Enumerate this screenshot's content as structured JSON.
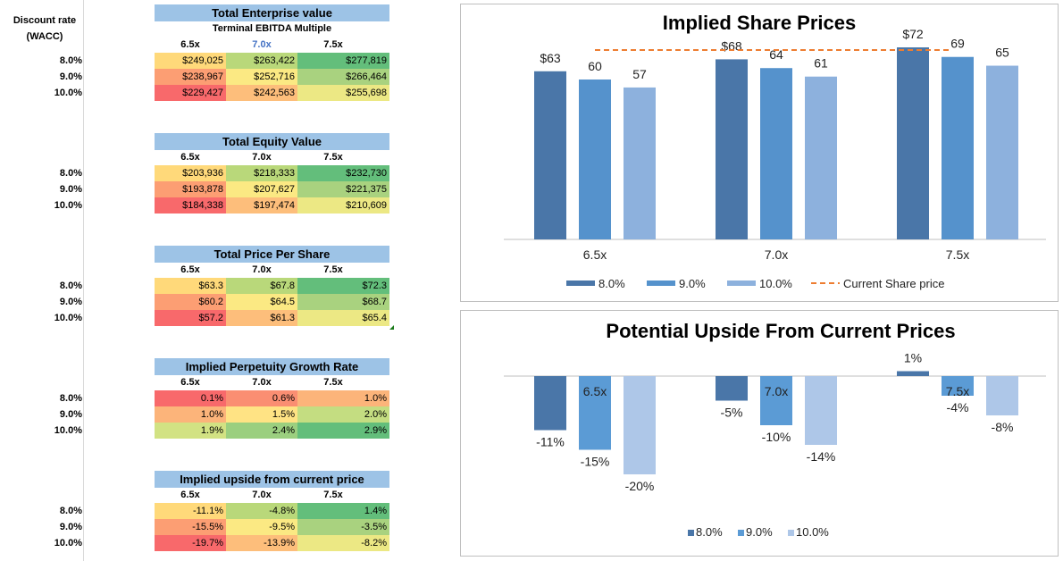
{
  "discount_label": [
    "Discount rate",
    "(WACC)"
  ],
  "row_labels": [
    "8.0%",
    "9.0%",
    "10.0%"
  ],
  "col_headers": [
    "6.5x",
    "7.0x",
    "7.5x"
  ],
  "terminal_label": "Terminal EBITDA Multiple",
  "tables": [
    {
      "title": "Total Enterprise value",
      "rows": [
        [
          "$249,025",
          "$263,422",
          "$277,819"
        ],
        [
          "$238,967",
          "$252,716",
          "$266,464"
        ],
        [
          "$229,427",
          "$242,563",
          "$255,698"
        ]
      ]
    },
    {
      "title": "Total Equity Value",
      "rows": [
        [
          "$203,936",
          "$218,333",
          "$232,730"
        ],
        [
          "$193,878",
          "$207,627",
          "$221,375"
        ],
        [
          "$184,338",
          "$197,474",
          "$210,609"
        ]
      ]
    },
    {
      "title": "Total Price Per Share",
      "rows": [
        [
          "$63.3",
          "$67.8",
          "$72.3"
        ],
        [
          "$60.2",
          "$64.5",
          "$68.7"
        ],
        [
          "$57.2",
          "$61.3",
          "$65.4"
        ]
      ]
    },
    {
      "title": "Implied Perpetuity Growth Rate",
      "rows": [
        [
          "0.1%",
          "0.6%",
          "1.0%"
        ],
        [
          "1.0%",
          "1.5%",
          "2.0%"
        ],
        [
          "1.9%",
          "2.4%",
          "2.9%"
        ]
      ]
    },
    {
      "title": "Implied upside from current price",
      "rows": [
        [
          "-11.1%",
          "-4.8%",
          "1.4%"
        ],
        [
          "-15.5%",
          "-9.5%",
          "-3.5%"
        ],
        [
          "-19.7%",
          "-13.9%",
          "-8.2%"
        ]
      ]
    }
  ],
  "table_colors": [
    [
      [
        "#ffd97a",
        "#b9d87a",
        "#63be7b"
      ],
      [
        "#fc9e73",
        "#fbe983",
        "#a9d27f"
      ],
      [
        "#f8696b",
        "#fdbe7b",
        "#ece884"
      ]
    ],
    [
      [
        "#ffd97a",
        "#b9d87a",
        "#63be7b"
      ],
      [
        "#fc9e73",
        "#fbe983",
        "#a9d27f"
      ],
      [
        "#f8696b",
        "#fdbe7b",
        "#ece884"
      ]
    ],
    [
      [
        "#ffd97a",
        "#b9d87a",
        "#63be7b"
      ],
      [
        "#fc9e73",
        "#fbe983",
        "#a9d27f"
      ],
      [
        "#f8696b",
        "#fdbe7b",
        "#ece884"
      ]
    ],
    [
      [
        "#f8696b",
        "#fa8e72",
        "#fcb47a"
      ],
      [
        "#fcb47a",
        "#ffe384",
        "#c4dd81"
      ],
      [
        "#d2e283",
        "#9bcf7f",
        "#63be7b"
      ]
    ],
    [
      [
        "#ffd97a",
        "#b9d87a",
        "#63be7b"
      ],
      [
        "#fc9e73",
        "#fbe983",
        "#a9d27f"
      ],
      [
        "#f8696b",
        "#fdbe7b",
        "#ece884"
      ]
    ]
  ],
  "chart_data": [
    {
      "type": "bar",
      "title": "Implied Share Prices",
      "categories": [
        "6.5x",
        "7.0x",
        "7.5x"
      ],
      "series": [
        {
          "name": "8.0%",
          "values": [
            63.3,
            67.8,
            72.3
          ],
          "labels": [
            "$63",
            "$68",
            "$72"
          ],
          "color": "#4a76a8"
        },
        {
          "name": "9.0%",
          "values": [
            60.2,
            64.5,
            68.7
          ],
          "labels": [
            "60",
            "64",
            "69"
          ],
          "color": "#5592cc"
        },
        {
          "name": "10.0%",
          "values": [
            57.2,
            61.3,
            65.4
          ],
          "labels": [
            "57",
            "61",
            "65"
          ],
          "color": "#8db1dd"
        }
      ],
      "reference_line": {
        "name": "Current Share price",
        "value": 71.3,
        "color": "#ed7d31"
      },
      "ylim": [
        0,
        75
      ],
      "legend": "bottom"
    },
    {
      "type": "bar",
      "title": "Potential Upside From Current Prices",
      "categories": [
        "6.5x",
        "7.0x",
        "7.5x"
      ],
      "series": [
        {
          "name": "8.0%",
          "values": [
            -11,
            -5,
            1
          ],
          "labels": [
            "-11%",
            "-5%",
            "1%"
          ],
          "color": "#4a76a8"
        },
        {
          "name": "9.0%",
          "values": [
            -15,
            -10,
            -4
          ],
          "labels": [
            "-15%",
            "-10%",
            "-4%"
          ],
          "color": "#5b9bd5"
        },
        {
          "name": "10.0%",
          "values": [
            -20,
            -14,
            -8
          ],
          "labels": [
            "-20%",
            "-14%",
            "-8%"
          ],
          "color": "#aec7e8"
        }
      ],
      "ylim": [
        -20,
        5
      ],
      "legend": "bottom"
    }
  ]
}
